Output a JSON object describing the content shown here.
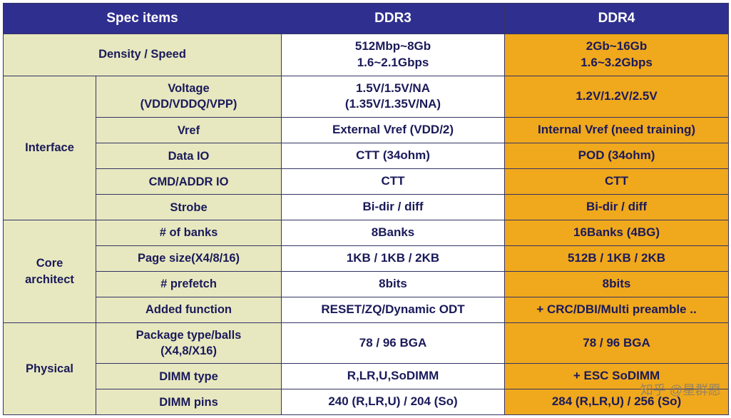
{
  "colors": {
    "header_bg": "#2f2f8f",
    "header_fg": "#ffffff",
    "cat_bg": "#e8e8c0",
    "spec_bg": "#e8e8c0",
    "ddr3_bg": "#ffffff",
    "ddr4_bg": "#f0a81c",
    "cell_fg": "#1a1a5a",
    "border": "#333366"
  },
  "headers": {
    "spec_items": "Spec items",
    "ddr3": "DDR3",
    "ddr4": "DDR4"
  },
  "watermark": "知乎 @星群愿",
  "groups": [
    {
      "category": "Density / Speed",
      "colspan_category": true,
      "rows": [
        {
          "ddr3": "512Mbp~8Gb\n1.6~2.1Gbps",
          "ddr4": "2Gb~16Gb\n1.6~3.2Gbps"
        }
      ]
    },
    {
      "category": "Interface",
      "rows": [
        {
          "spec": "Voltage\n(VDD/VDDQ/VPP)",
          "ddr3": "1.5V/1.5V/NA\n(1.35V/1.35V/NA)",
          "ddr4": "1.2V/1.2V/2.5V"
        },
        {
          "spec": "Vref",
          "ddr3": "External Vref (VDD/2)",
          "ddr4": "Internal Vref (need training)"
        },
        {
          "spec": "Data IO",
          "ddr3": "CTT (34ohm)",
          "ddr4": "POD (34ohm)"
        },
        {
          "spec": "CMD/ADDR IO",
          "ddr3": "CTT",
          "ddr4": "CTT"
        },
        {
          "spec": "Strobe",
          "ddr3": "Bi-dir / diff",
          "ddr4": "Bi-dir / diff"
        }
      ]
    },
    {
      "category": "Core\narchitect",
      "rows": [
        {
          "spec": "# of banks",
          "ddr3": "8Banks",
          "ddr4": "16Banks (4BG)"
        },
        {
          "spec": "Page size(X4/8/16)",
          "ddr3": "1KB / 1KB / 2KB",
          "ddr4": "512B / 1KB / 2KB"
        },
        {
          "spec": "# prefetch",
          "ddr3": "8bits",
          "ddr4": "8bits"
        },
        {
          "spec": "Added function",
          "ddr3": "RESET/ZQ/Dynamic ODT",
          "ddr4": "+ CRC/DBI/Multi preamble .."
        }
      ]
    },
    {
      "category": "Physical",
      "rows": [
        {
          "spec": "Package type/balls\n(X4,8/X16)",
          "ddr3": "78 / 96 BGA",
          "ddr4": "78 / 96 BGA"
        },
        {
          "spec": "DIMM type",
          "ddr3": "R,LR,U,SoDIMM",
          "ddr4": "+ ESC SoDIMM"
        },
        {
          "spec": "DIMM pins",
          "ddr3": "240 (R,LR,U) / 204 (So)",
          "ddr4": "284 (R,LR,U) / 256 (So)"
        }
      ]
    }
  ]
}
